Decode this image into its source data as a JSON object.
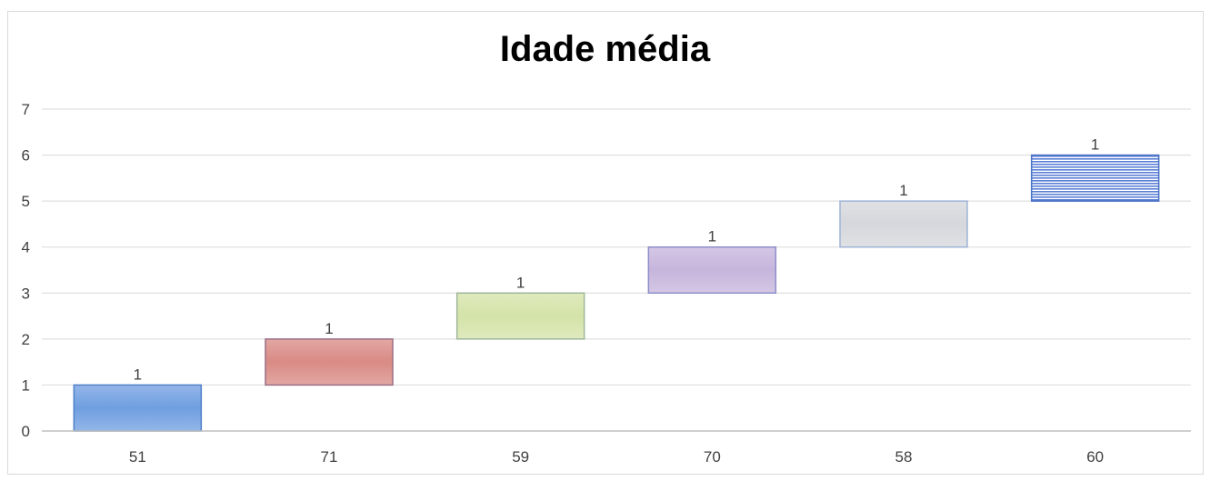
{
  "chart_data": {
    "type": "bar",
    "title": "Idade média",
    "xlabel": "",
    "ylabel": "",
    "categories": [
      "51",
      "71",
      "59",
      "70",
      "58",
      "60"
    ],
    "series": [
      {
        "base": [
          0,
          1,
          2,
          3,
          4,
          5
        ],
        "values": [
          1,
          1,
          1,
          1,
          1,
          1
        ],
        "data_labels": [
          "1",
          "1",
          "1",
          "1",
          "1",
          "1"
        ]
      }
    ],
    "ylim": [
      0,
      7
    ],
    "yticks": [
      "0",
      "1",
      "2",
      "3",
      "4",
      "5",
      "6",
      "7"
    ],
    "grid": true,
    "legend": "none",
    "colors": [
      "#6f9ee0",
      "#d98a84",
      "#d4e3a8",
      "#c6b5dc",
      "#d5d7dc",
      "#5b7fd6"
    ],
    "edge_colors": [
      "#4f81c8",
      "#9a6f86",
      "#9fb79a",
      "#8d8fc9",
      "#9fb3d6",
      "#4a72c4"
    ]
  }
}
